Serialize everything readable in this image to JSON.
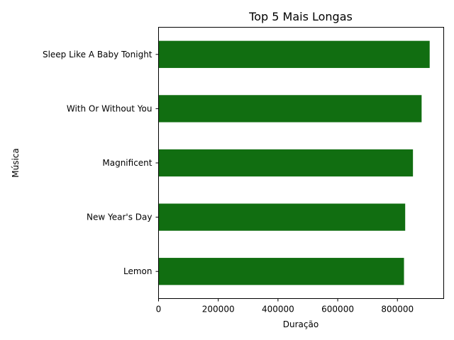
{
  "chart_data": {
    "type": "bar",
    "orientation": "horizontal",
    "title": "Top 5 Mais Longas",
    "xlabel": "Duração",
    "ylabel": "Música",
    "categories": [
      "Sleep Like A Baby Tonight",
      "With Or Without You",
      "Magnificent",
      "New Year's Day",
      "Lemon"
    ],
    "values": [
      908000,
      881000,
      852000,
      826000,
      822000
    ],
    "xlim": [
      0,
      955000
    ],
    "xticks": [
      0,
      200000,
      400000,
      600000,
      800000
    ],
    "xtick_labels": [
      "0",
      "200000",
      "400000",
      "600000",
      "800000"
    ],
    "bar_color": "#116e11",
    "grid": false,
    "legend": "none"
  }
}
